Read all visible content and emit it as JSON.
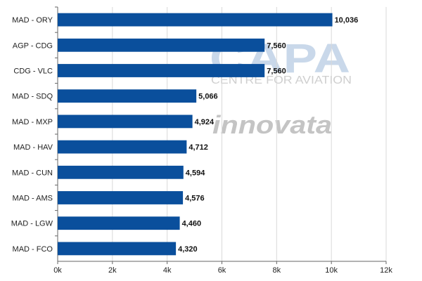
{
  "watermarks": {
    "capa": "CAPA",
    "capa_subtitle": "CENTRE FOR AVIATION",
    "innovata": "innovata"
  },
  "chart_data": {
    "type": "bar",
    "orientation": "horizontal",
    "categories": [
      "MAD - ORY",
      "AGP - CDG",
      "CDG - VLC",
      "MAD - SDQ",
      "MAD - MXP",
      "MAD - HAV",
      "MAD - CUN",
      "MAD - AMS",
      "MAD - LGW",
      "MAD - FCO"
    ],
    "values": [
      10036,
      7560,
      7560,
      5066,
      4924,
      4712,
      4594,
      4576,
      4460,
      4320
    ],
    "value_labels": [
      "10,036",
      "7,560",
      "7,560",
      "5,066",
      "4,924",
      "4,712",
      "4,594",
      "4,576",
      "4,460",
      "4,320"
    ],
    "xlim": [
      0,
      12000
    ],
    "x_ticks": [
      0,
      2000,
      4000,
      6000,
      8000,
      10000,
      12000
    ],
    "x_tick_labels": [
      "0k",
      "2k",
      "4k",
      "6k",
      "8k",
      "10k",
      "12k"
    ],
    "title": "",
    "xlabel": "",
    "ylabel": "",
    "grid": "vertical",
    "legend": "none",
    "bar_color": "#0a4f9c",
    "grid_color": "#d9d9d9"
  }
}
